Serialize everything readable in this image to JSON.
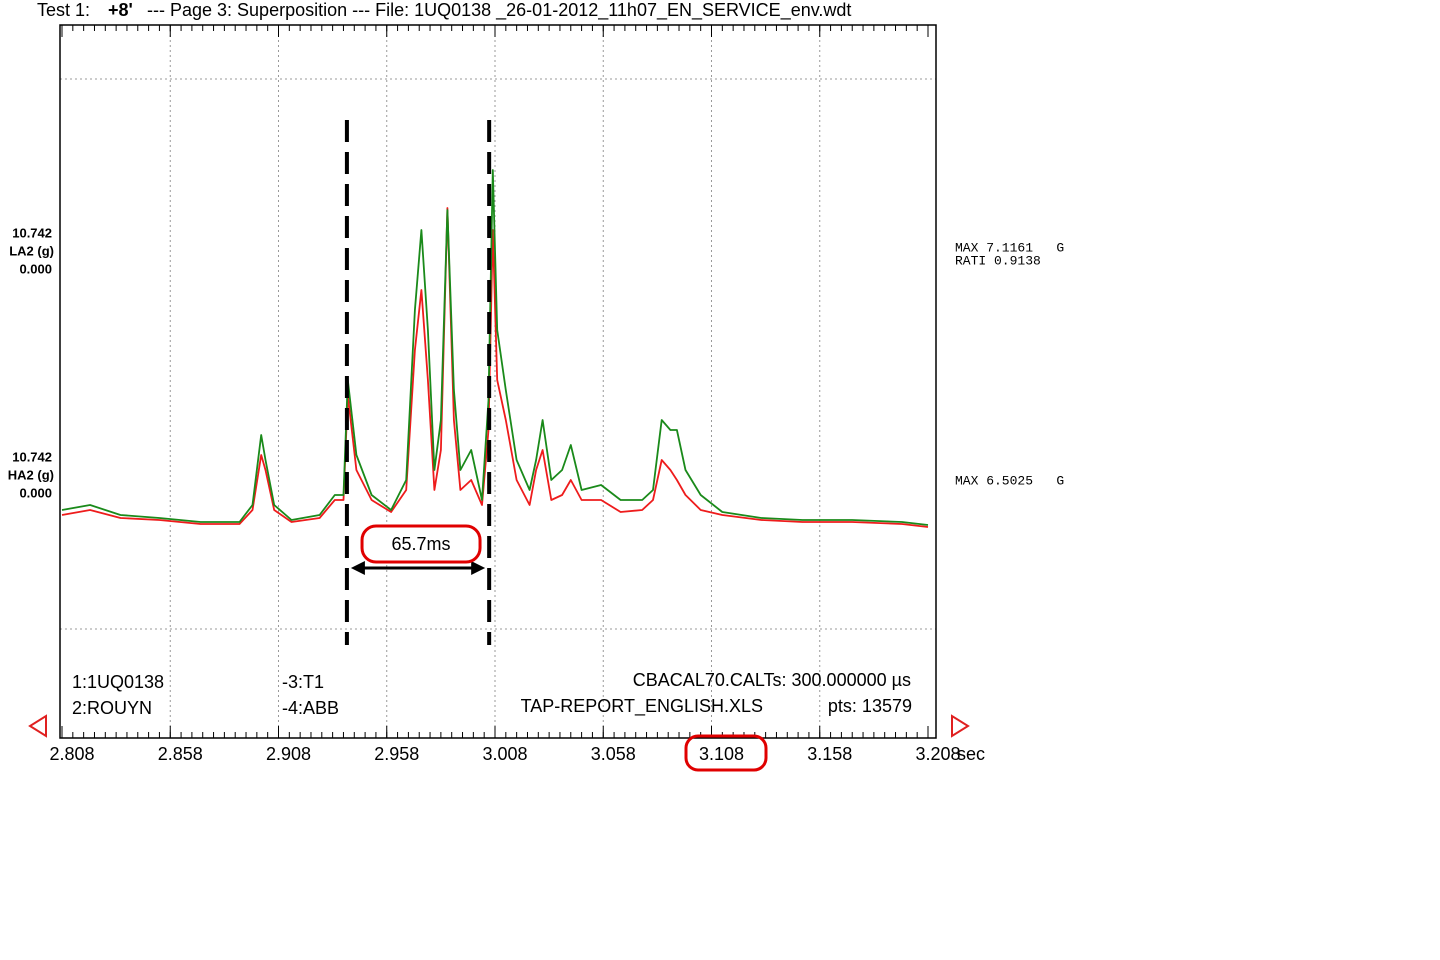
{
  "header": {
    "test": "Test 1:",
    "offset": "+8'",
    "description": "--- Page 3: Superposition --- File: 1UQ0138 _26-01-2012_11h07_EN_SERVICE_env.wdt"
  },
  "chart_data": {
    "type": "line",
    "xlabel": "sec",
    "xlim": [
      2.808,
      3.208
    ],
    "xticks": [
      2.808,
      2.858,
      2.908,
      2.958,
      3.008,
      3.058,
      3.108,
      3.158,
      3.208
    ],
    "ylim": [
      -4.32,
      9.94
    ],
    "ygrid": [
      8.86,
      -2.14
    ],
    "grid": true,
    "x": [
      2.808,
      2.821,
      2.835,
      2.853,
      2.872,
      2.89,
      2.896,
      2.9,
      2.902,
      2.906,
      2.914,
      2.927,
      2.934,
      2.938,
      2.94,
      2.944,
      2.951,
      2.96,
      2.967,
      2.971,
      2.974,
      2.977,
      2.98,
      2.983,
      2.986,
      2.989,
      2.992,
      2.997,
      3.002,
      3.005,
      3.007,
      3.009,
      3.013,
      3.018,
      3.024,
      3.027,
      3.03,
      3.034,
      3.039,
      3.043,
      3.048,
      3.057,
      3.066,
      3.076,
      3.081,
      3.085,
      3.089,
      3.092,
      3.096,
      3.103,
      3.113,
      3.131,
      3.15,
      3.173,
      3.196,
      3.208
    ],
    "series": [
      {
        "name": "LA2 (g)",
        "color": "#1a8a1a",
        "max_label": "10.742",
        "min_label": "0.000",
        "stats": [
          "MAX 7.1161   G",
          "RATI 0.9138"
        ],
        "values": [
          0.24,
          0.34,
          0.14,
          0.08,
          0,
          0,
          0.34,
          1.74,
          1.24,
          0.34,
          0.04,
          0.14,
          0.54,
          0.54,
          2.84,
          1.34,
          0.54,
          0.24,
          0.84,
          4.24,
          5.84,
          3.84,
          1.04,
          2.04,
          6.24,
          2.64,
          1.04,
          1.44,
          0.44,
          2.44,
          7.04,
          3.84,
          2.64,
          1.24,
          0.64,
          1.24,
          2.04,
          0.84,
          1.04,
          1.54,
          0.64,
          0.74,
          0.44,
          0.44,
          0.64,
          2.04,
          1.84,
          1.84,
          1.04,
          0.54,
          0.2,
          0.08,
          0.04,
          0.04,
          0,
          -0.06
        ]
      },
      {
        "name": "HA2 (g)",
        "color": "#ee1c1c",
        "max_label": "10.742",
        "min_label": "0.000",
        "stats": [
          "MAX 6.5025   G"
        ],
        "values": [
          0.14,
          0.24,
          0.08,
          0.04,
          -0.04,
          -0.04,
          0.24,
          1.34,
          1.04,
          0.24,
          0,
          0.08,
          0.44,
          0.44,
          2.54,
          1.04,
          0.44,
          0.2,
          0.64,
          3.44,
          4.64,
          2.84,
          0.64,
          1.44,
          6.28,
          2.04,
          0.64,
          0.84,
          0.34,
          1.84,
          5.84,
          2.84,
          2.04,
          0.84,
          0.34,
          1.04,
          1.44,
          0.44,
          0.54,
          0.84,
          0.44,
          0.44,
          0.2,
          0.24,
          0.44,
          1.24,
          1.04,
          0.84,
          0.54,
          0.24,
          0.14,
          0.04,
          0,
          0,
          -0.04,
          -0.1
        ]
      }
    ],
    "cursors": [
      2.9396,
      3.0053
    ],
    "cursor_label": "65.7ms"
  },
  "footer": {
    "channel_1": "1:1UQ0138",
    "channel_2": "2:ROUYN",
    "channel_3": "-3:T1",
    "channel_4": "-4:ABB",
    "calibration": "CBACAL70.CALTs: 300.000000 µs",
    "report": "TAP-REPORT_ENGLISH.XLS",
    "points": "pts: 13579"
  }
}
